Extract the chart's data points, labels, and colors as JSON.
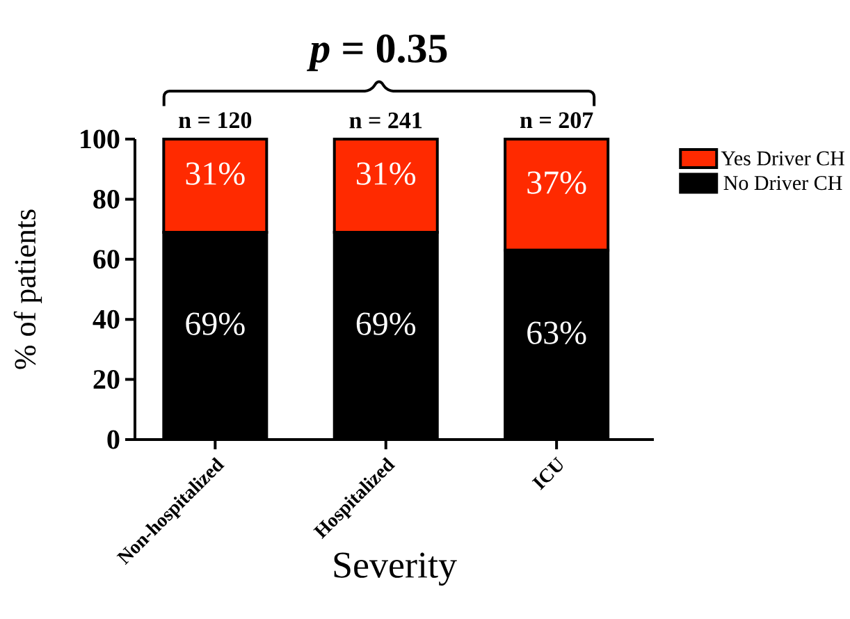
{
  "chart_data": {
    "type": "bar",
    "stacked": true,
    "xlabel": "Severity",
    "ylabel": "% of patients",
    "categories": [
      "Non-hospitalized",
      "Hospitalized",
      "ICU"
    ],
    "series": [
      {
        "name": "No Driver CH",
        "color": "#000000",
        "values": [
          69,
          69,
          63
        ],
        "value_labels": [
          "69%",
          "69%",
          "63%"
        ]
      },
      {
        "name": "Yes Driver CH",
        "color": "#ff2a00",
        "values": [
          31,
          31,
          37
        ],
        "value_labels": [
          "31%",
          "31%",
          "37%"
        ]
      }
    ],
    "ylim": [
      0,
      100
    ],
    "yticks": [
      0,
      20,
      40,
      60,
      80,
      100
    ],
    "grid": false,
    "legend": "top right",
    "annotations": [
      "*p* = 0.35",
      "n =  120",
      "n =  241",
      "n =  207"
    ]
  }
}
